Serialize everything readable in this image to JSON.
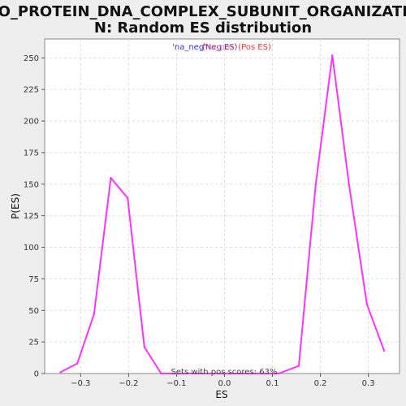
{
  "chart_data": {
    "type": "line",
    "title_line1": "GO_PROTEIN_DNA_COMPLEX_SUBUNIT_ORGANIZATIO",
    "title_line2": "N: Random ES distribution",
    "xlabel": "ES",
    "ylabel": "P(ES)",
    "xlim": [
      -0.375,
      0.365
    ],
    "ylim": [
      0,
      265
    ],
    "x_ticks": [
      -0.3,
      -0.2,
      -0.1,
      0.0,
      0.1,
      0.2,
      0.3
    ],
    "x_tick_labels": [
      "−0.3",
      "−0.2",
      "−0.1",
      "0.0",
      "0.1",
      "0.2",
      "0.3"
    ],
    "y_ticks": [
      0,
      25,
      50,
      75,
      100,
      125,
      150,
      175,
      200,
      225,
      250
    ],
    "grid": true,
    "legend": {
      "placement": "top-center",
      "entries": [
        {
          "label": "'na_neg'",
          "color": "#3333cc"
        },
        {
          "label": "(Neg ES)",
          "color": "#993399"
        },
        {
          "label": "'na_pos'",
          "color": "#aa3366"
        },
        {
          "label": "(Pos ES)",
          "color": "#ee3333"
        }
      ]
    },
    "annotation": "Sets with pos scores: 63%",
    "series": [
      {
        "color": "#ff33ff",
        "x": [
          -0.342,
          -0.307,
          -0.272,
          -0.237,
          -0.202,
          -0.167,
          -0.132,
          -0.097,
          -0.062,
          -0.027,
          0.008,
          0.043,
          0.078,
          0.113,
          0.155,
          0.19,
          0.225,
          0.26,
          0.297,
          0.333
        ],
        "y": [
          1,
          8,
          47,
          155,
          139,
          21,
          0,
          0,
          0,
          0,
          0,
          0,
          0,
          0,
          6,
          149,
          252,
          149,
          55,
          18
        ]
      }
    ]
  }
}
